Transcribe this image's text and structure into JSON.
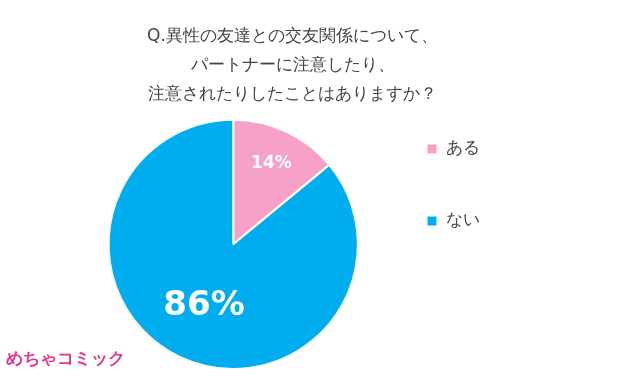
{
  "chart_data": {
    "type": "pie",
    "title": [
      "Q.異性の友達との交友関係について、",
      "パートナーに注意したり、",
      "注意されたりしたことはありますか？"
    ],
    "categories": [
      "ある",
      "ない"
    ],
    "values": [
      14,
      86
    ],
    "value_labels": [
      "14%",
      "86%"
    ],
    "colors": [
      "#f7a1c9",
      "#00aeef"
    ],
    "data_labels": true,
    "legend": "right",
    "annotations": [
      "めちゃコミック"
    ]
  }
}
